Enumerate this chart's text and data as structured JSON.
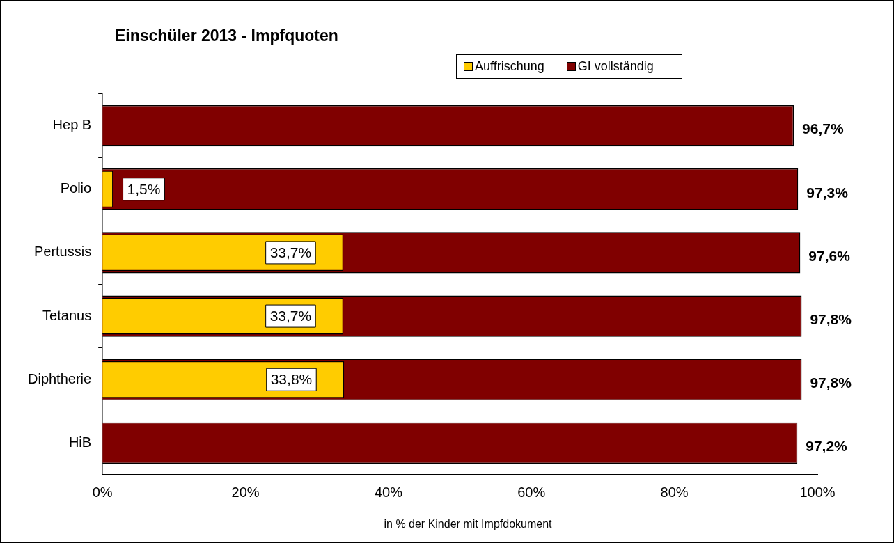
{
  "chart_data": {
    "type": "bar",
    "orientation": "horizontal",
    "title": "Einschüler 2013 - Impfquoten",
    "xlabel": "in % der Kinder mit Impfdokument",
    "categories": [
      "Hep B",
      "Polio",
      "Pertussis",
      "Tetanus",
      "Diphtherie",
      "HiB"
    ],
    "series": [
      {
        "name": "Auffrischung",
        "color": "#ffcc00",
        "values": [
          null,
          1.5,
          33.7,
          33.7,
          33.8,
          null
        ],
        "value_labels": [
          null,
          "1,5%",
          "33,7%",
          "33,7%",
          "33,8%",
          null
        ]
      },
      {
        "name": "GI vollständig",
        "color": "#800000",
        "values": [
          96.7,
          97.3,
          97.6,
          97.8,
          97.8,
          97.2
        ],
        "value_labels": [
          "96,7%",
          "97,3%",
          "97,6%",
          "97,8%",
          "97,8%",
          "97,2%"
        ]
      }
    ],
    "xlim": [
      0,
      100
    ],
    "xticks": [
      {
        "value": 0,
        "label": "0%"
      },
      {
        "value": 20,
        "label": "20%"
      },
      {
        "value": 40,
        "label": "40%"
      },
      {
        "value": 60,
        "label": "60%"
      },
      {
        "value": 80,
        "label": "80%"
      },
      {
        "value": 100,
        "label": "100%"
      }
    ],
    "grid": false,
    "legend": "top right"
  }
}
